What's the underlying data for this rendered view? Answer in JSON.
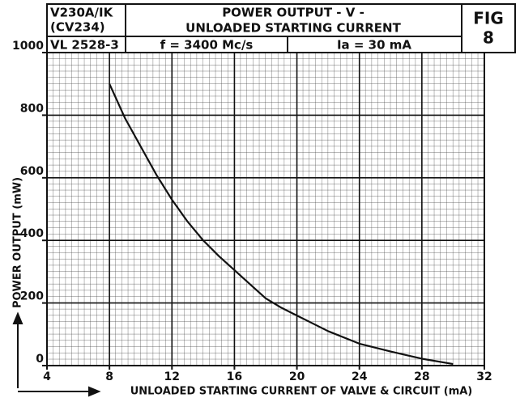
{
  "chart_data": {
    "type": "line",
    "valve": "V230A/IK",
    "cv": "(CV234)",
    "vl": "VL 2528-3",
    "title": "POWER OUTPUT - V -",
    "subtitle": "UNLOADED STARTING CURRENT",
    "frequency": "f = 3400 Mc/s",
    "anode_current": "Ia = 30 mA",
    "fig": "FIG",
    "fig_number": "8",
    "xlabel": "UNLOADED STARTING CURRENT OF VALVE & CIRCUIT (mA)",
    "ylabel": "POWER OUTPUT (mW)",
    "x": [
      8,
      9,
      10,
      11,
      12,
      13,
      14,
      15,
      16,
      17,
      18,
      19,
      20,
      22,
      24,
      26,
      28,
      30
    ],
    "series": [
      {
        "color": "#111111",
        "values": [
          900,
          790,
          700,
          610,
          530,
          460,
          400,
          350,
          305,
          260,
          215,
          185,
          160,
          110,
          70,
          45,
          22,
          5
        ]
      }
    ],
    "xlim": [
      4,
      32
    ],
    "xticks": [
      4,
      8,
      12,
      16,
      20,
      24,
      28,
      32
    ],
    "ylim": [
      0,
      1000
    ],
    "yticks": [
      0,
      200,
      400,
      600,
      800,
      1000
    ],
    "grid": true
  }
}
